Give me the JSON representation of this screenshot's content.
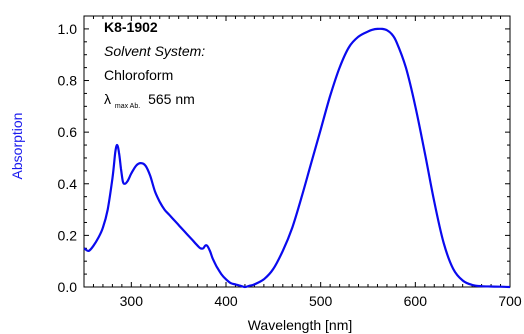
{
  "chart_data": {
    "type": "line",
    "xlabel": "Wavelength [nm]",
    "ylabel": "Absorption",
    "xlim": [
      250,
      700
    ],
    "ylim": [
      0,
      1.05
    ],
    "x_ticks": [
      300,
      400,
      500,
      600,
      700
    ],
    "y_ticks": [
      "0.0",
      "0.2",
      "0.4",
      "0.6",
      "0.8",
      "1.0"
    ],
    "grid": false,
    "colors": {
      "series": "#0a0aee",
      "ylabel": "#1a1aee",
      "axes": "#000000"
    },
    "annotations": {
      "sample_id": "K8-1902",
      "solvent_label": "Solvent System:",
      "solvent": "Chloroform",
      "lambda_symbol": "λ",
      "lambda_subscript": "max Ab.",
      "lambda_value": "565 nm"
    },
    "series": [
      {
        "x": [
          250,
          255,
          260,
          265,
          270,
          275,
          280,
          283,
          285,
          287,
          289,
          291,
          293,
          296,
          300,
          305,
          310,
          315,
          320,
          325,
          330,
          335,
          340,
          345,
          350,
          355,
          360,
          365,
          370,
          373,
          376,
          378,
          380,
          383,
          386,
          390,
          395,
          400,
          405,
          410,
          415,
          420,
          425,
          430,
          440,
          450,
          460,
          470,
          480,
          490,
          500,
          510,
          520,
          530,
          540,
          550,
          555,
          560,
          565,
          570,
          575,
          580,
          590,
          600,
          610,
          620,
          630,
          640,
          650,
          660,
          670,
          680,
          690,
          700
        ],
        "y": [
          0.15,
          0.14,
          0.16,
          0.19,
          0.23,
          0.3,
          0.42,
          0.52,
          0.55,
          0.52,
          0.46,
          0.41,
          0.4,
          0.41,
          0.44,
          0.47,
          0.48,
          0.47,
          0.43,
          0.37,
          0.33,
          0.3,
          0.28,
          0.26,
          0.24,
          0.22,
          0.2,
          0.18,
          0.16,
          0.15,
          0.15,
          0.16,
          0.16,
          0.14,
          0.11,
          0.08,
          0.05,
          0.03,
          0.015,
          0.01,
          0.005,
          0.0,
          0.005,
          0.01,
          0.03,
          0.07,
          0.14,
          0.23,
          0.35,
          0.48,
          0.61,
          0.74,
          0.85,
          0.93,
          0.97,
          0.99,
          0.997,
          1.0,
          1.0,
          0.995,
          0.98,
          0.95,
          0.85,
          0.7,
          0.52,
          0.33,
          0.17,
          0.07,
          0.025,
          0.008,
          0.003,
          0.002,
          0.001,
          0.0
        ]
      }
    ]
  }
}
